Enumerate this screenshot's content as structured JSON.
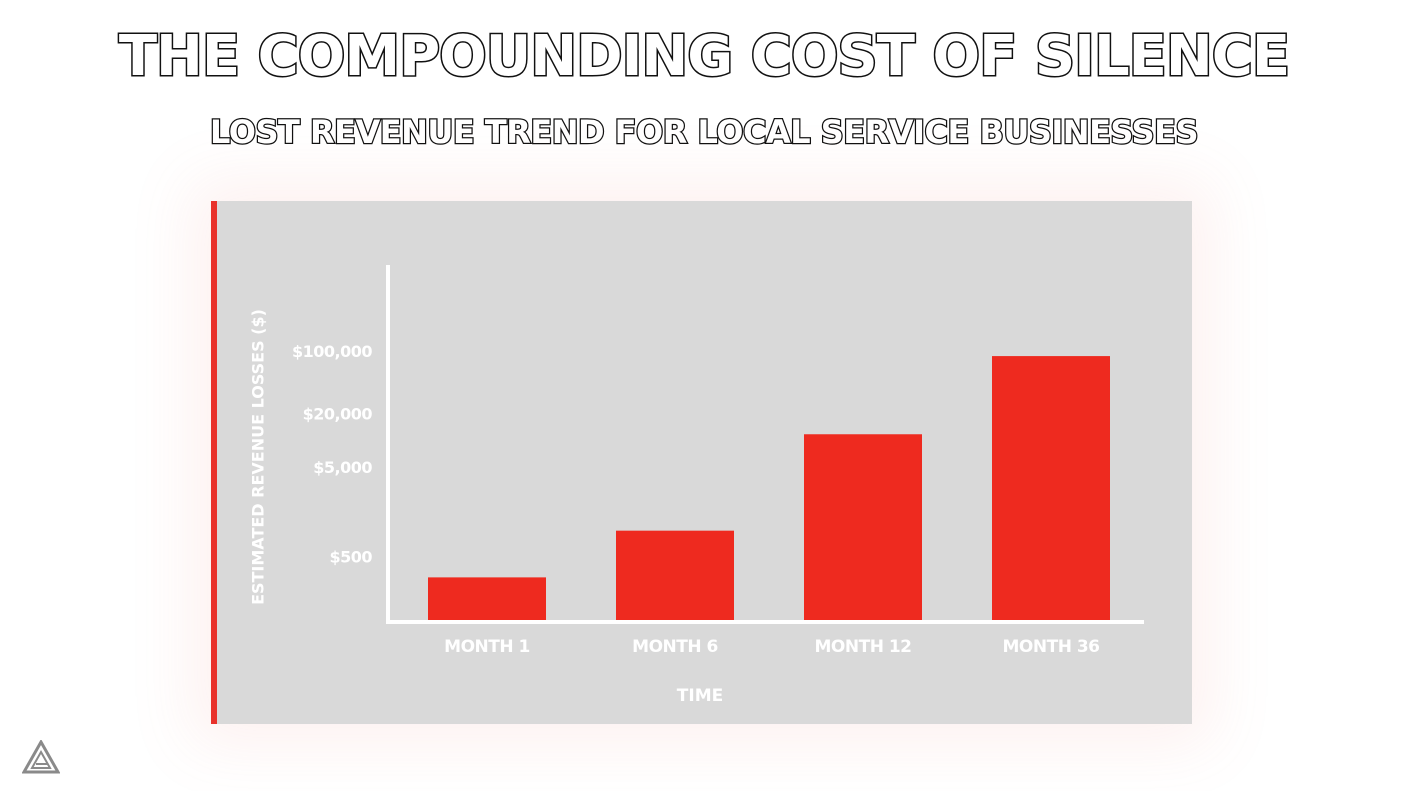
{
  "chart_data": {
    "type": "bar",
    "title": "THE COMPOUNDING COST OF SILENCE",
    "subtitle": "LOST REVENUE TREND FOR LOCAL SERVICE BUSINESSES",
    "xlabel": "TIME",
    "ylabel": "ESTIMATED REVENUE LOSSES ($)",
    "categories": [
      "MONTH 1",
      "MONTH 6",
      "MONTH 12",
      "MONTH 36"
    ],
    "values": [
      300,
      1000,
      12000,
      90000
    ],
    "y_ticks": [
      {
        "value": 500,
        "label": "$500"
      },
      {
        "value": 5000,
        "label": "$5,000"
      },
      {
        "value": 20000,
        "label": "$20,000"
      },
      {
        "value": 100000,
        "label": "$100,000"
      }
    ],
    "y_scale": "log",
    "grid": false,
    "legend": "none",
    "colors": {
      "bar": "#ee2a1f",
      "panel_background": "#d9d9d9",
      "accent_border": "#e8322b",
      "axis": "#ffffff",
      "text": "#ffffff",
      "title_outline": "#111111"
    }
  },
  "logo": {
    "icon": "triangle-logo-icon"
  }
}
